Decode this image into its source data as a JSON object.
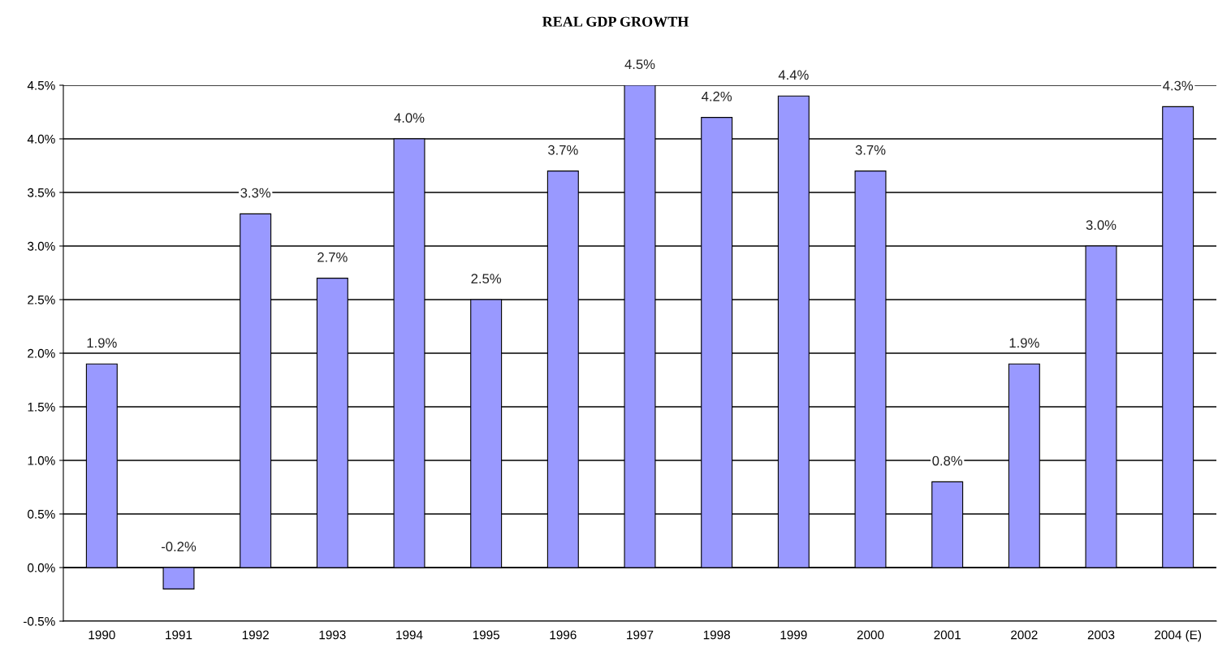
{
  "chart_data": {
    "type": "bar",
    "title": "REAL GDP GROWTH",
    "categories": [
      "1990",
      "1991",
      "1992",
      "1993",
      "1994",
      "1995",
      "1996",
      "1997",
      "1998",
      "1999",
      "2000",
      "2001",
      "2002",
      "2003",
      "2004 (E)"
    ],
    "values": [
      1.9,
      -0.2,
      3.3,
      2.7,
      4.0,
      2.5,
      3.7,
      4.5,
      4.2,
      4.4,
      3.7,
      0.8,
      1.9,
      3.0,
      4.3
    ],
    "value_labels": [
      "1.9%",
      "-0.2%",
      "3.3%",
      "2.7%",
      "4.0%",
      "2.5%",
      "3.7%",
      "4.5%",
      "4.2%",
      "4.4%",
      "3.7%",
      "0.8%",
      "1.9%",
      "3.0%",
      "4.3%"
    ],
    "color": "#9999ff",
    "ylim": [
      -0.5,
      4.5
    ],
    "yticks": [
      {
        "value": -0.5,
        "label": "-0.5%"
      },
      {
        "value": 0,
        "label": "0.0%"
      },
      {
        "value": 0.5,
        "label": "0.5%"
      },
      {
        "value": 1.0,
        "label": "1.0%"
      },
      {
        "value": 1.5,
        "label": "1.5%"
      },
      {
        "value": 2.0,
        "label": "2.0%"
      },
      {
        "value": 2.5,
        "label": "2.5%"
      },
      {
        "value": 3.0,
        "label": "3.0%"
      },
      {
        "value": 3.5,
        "label": "3.5%"
      },
      {
        "value": 4.0,
        "label": "4.0%"
      },
      {
        "value": 4.5,
        "label": "4.5%"
      }
    ],
    "grid": "y",
    "legend": false
  }
}
